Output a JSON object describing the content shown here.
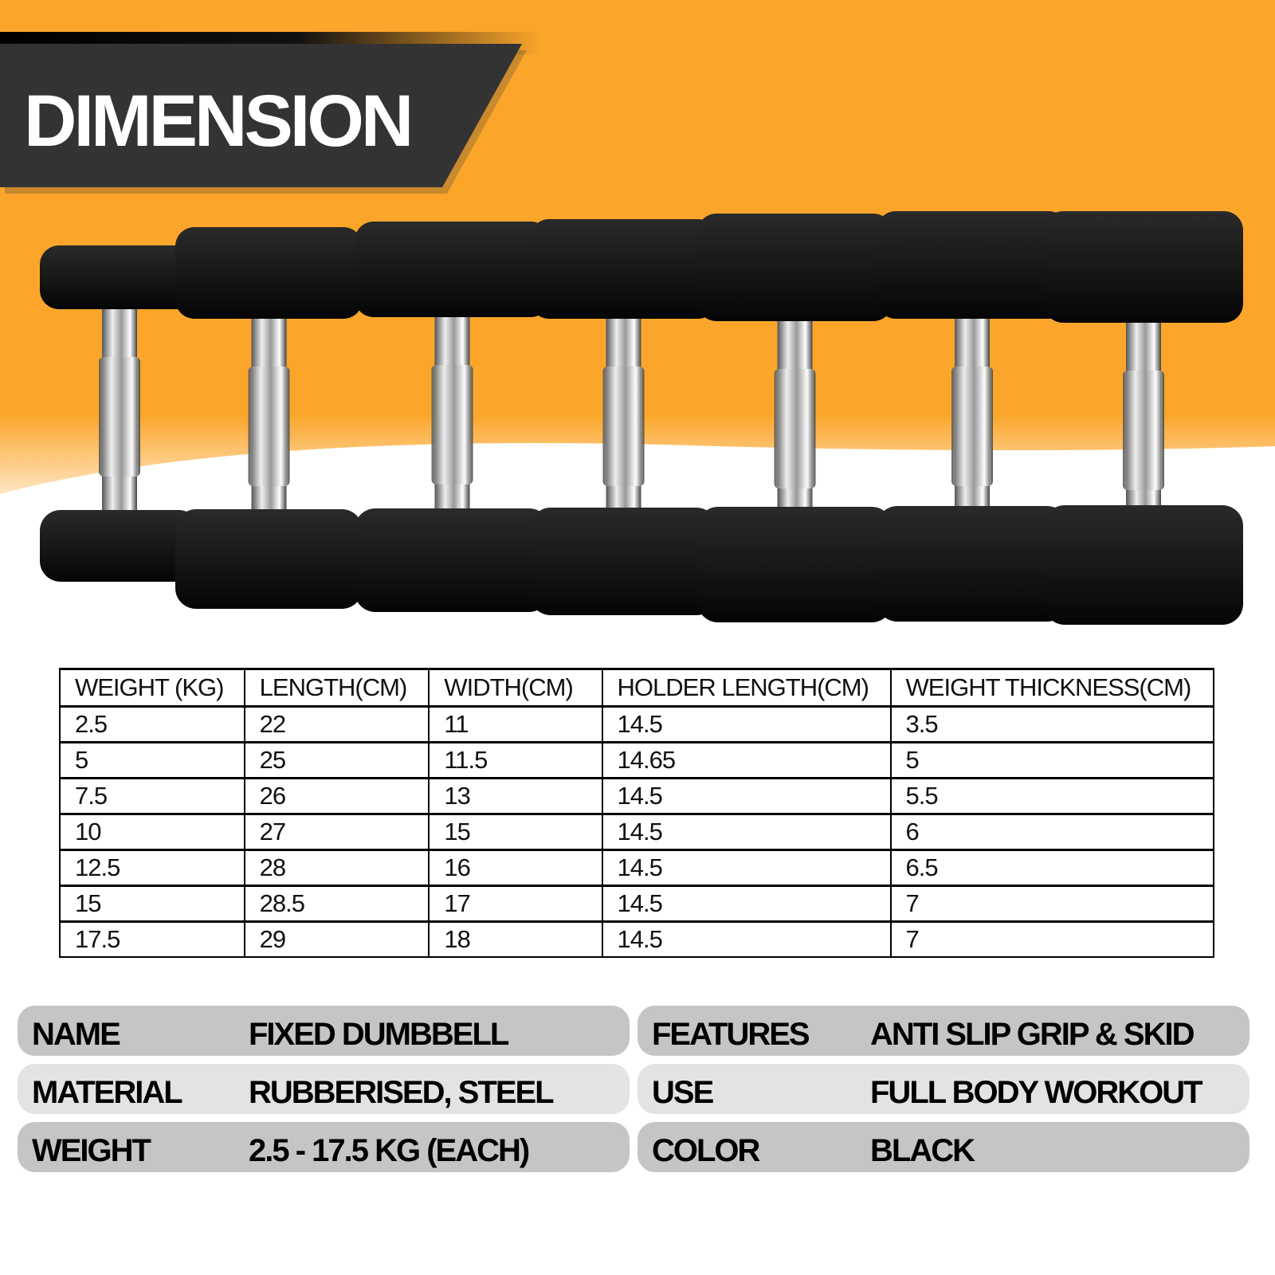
{
  "header": {
    "title": "DIMENSION"
  },
  "colors": {
    "orange": "#fba62b",
    "banner": "#333333",
    "spec_dark": "#c4c5c4",
    "spec_light": "#e3e3e3"
  },
  "image": {
    "subject": "dumbbell-set",
    "count": 7,
    "color": "black rubber with chrome handle"
  },
  "table": {
    "headers": [
      "WEIGHT (KG)",
      "LENGTH(CM)",
      "WIDTH(CM)",
      "HOLDER LENGTH(CM)",
      "WEIGHT THICKNESS(CM)"
    ],
    "rows": [
      [
        "2.5",
        "22",
        "11",
        "14.5",
        "3.5"
      ],
      [
        "5",
        "25",
        "11.5",
        "14.65",
        "5"
      ],
      [
        "7.5",
        "26",
        "13",
        "14.5",
        "5.5"
      ],
      [
        "10",
        "27",
        "15",
        "14.5",
        "6"
      ],
      [
        "12.5",
        "28",
        "16",
        "14.5",
        "6.5"
      ],
      [
        "15",
        "28.5",
        "17",
        "14.5",
        "7"
      ],
      [
        "17.5",
        "29",
        "18",
        "14.5",
        "7"
      ]
    ]
  },
  "specs": {
    "left": [
      {
        "label": "NAME",
        "value": "FIXED DUMBBELL"
      },
      {
        "label": "MATERIAL",
        "value": "RUBBERISED, STEEL"
      },
      {
        "label": "WEIGHT",
        "value": "2.5 - 17.5 KG (EACH)"
      }
    ],
    "right": [
      {
        "label": "FEATURES",
        "value": "ANTI SLIP GRIP & SKID"
      },
      {
        "label": "USE",
        "value": "FULL BODY WORKOUT"
      },
      {
        "label": "COLOR",
        "value": "BLACK"
      }
    ]
  }
}
